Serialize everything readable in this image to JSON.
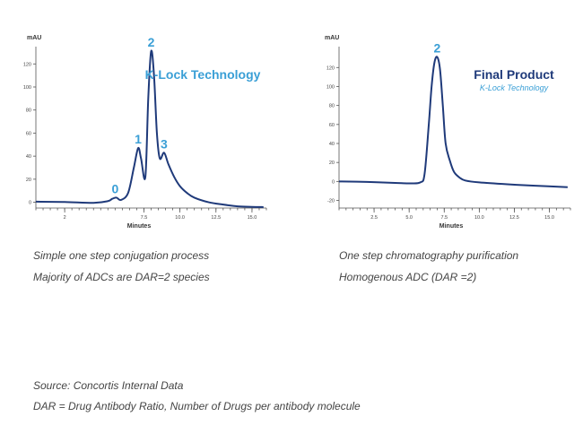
{
  "chart_data": [
    {
      "type": "line",
      "ylabel": "mAU",
      "xlabel": "Minutes",
      "xlim": [
        0,
        16
      ],
      "ylim": [
        -5,
        135
      ],
      "x_ticks": [
        2,
        7.5,
        10.0,
        12.5,
        15.0
      ],
      "x_tick_labels": [
        "2",
        "7.5",
        "10.0",
        "12.5",
        "15.0"
      ],
      "y_ticks": [
        0,
        20,
        40,
        60,
        80,
        100,
        120
      ],
      "y_tick_labels": [
        "0",
        "20",
        "40",
        "60",
        "80",
        "100",
        "120"
      ],
      "annotation": "K-Lock Technology",
      "annotation_sub": "",
      "peaks": [
        {
          "label": "0",
          "x": 5.5,
          "y": 4
        },
        {
          "label": "1",
          "x": 7.1,
          "y": 47
        },
        {
          "label": "2",
          "x": 8.0,
          "y": 131
        },
        {
          "label": "3",
          "x": 8.9,
          "y": 43
        }
      ],
      "series": [
        {
          "x": [
            0,
            2,
            4,
            5,
            5.3,
            5.6,
            5.9,
            6.4,
            6.8,
            7.1,
            7.3,
            7.6,
            7.8,
            8.0,
            8.2,
            8.4,
            8.6,
            8.9,
            9.2,
            9.6,
            10,
            10.5,
            11,
            12,
            13,
            14,
            15,
            15.8
          ],
          "y": [
            0.5,
            0.3,
            -0.5,
            1,
            3,
            4,
            2,
            8,
            30,
            47,
            38,
            22,
            90,
            131,
            110,
            60,
            38,
            43,
            33,
            22,
            14,
            8,
            4,
            0,
            -2,
            -3.5,
            -4,
            -4.2
          ]
        }
      ]
    },
    {
      "type": "line",
      "ylabel": "mAU",
      "xlabel": "Minutes",
      "xlim": [
        0,
        16.5
      ],
      "ylim": [
        -28,
        142
      ],
      "x_ticks": [
        2.5,
        5.0,
        7.5,
        10.0,
        12.5,
        15.0
      ],
      "x_tick_labels": [
        "2.5",
        "5.0",
        "7.5",
        "10.0",
        "12.5",
        "15.0"
      ],
      "y_ticks": [
        -20,
        0,
        20,
        40,
        60,
        80,
        100,
        120
      ],
      "y_tick_labels": [
        "-20",
        "0",
        "20",
        "40",
        "60",
        "80",
        "100",
        "120"
      ],
      "annotation": "Final Product",
      "annotation_sub": "K-Lock Technology",
      "peaks": [
        {
          "label": "2",
          "x": 7.0,
          "y": 131
        }
      ],
      "series": [
        {
          "x": [
            0,
            2,
            4,
            5,
            5.8,
            6.1,
            6.4,
            6.6,
            6.8,
            7.0,
            7.2,
            7.4,
            7.6,
            7.9,
            8.2,
            8.6,
            9,
            10,
            12,
            14,
            16.3
          ],
          "y": [
            0,
            -0.5,
            -1.5,
            -2,
            -1,
            8,
            60,
            100,
            125,
            131,
            118,
            80,
            40,
            22,
            10,
            4,
            1,
            -1,
            -3,
            -4.5,
            -6
          ]
        }
      ]
    }
  ],
  "captions": {
    "left_line1": "Simple one step conjugation process",
    "left_line2": "Majority of ADCs are DAR=2 species",
    "right_line1": "One step chromatography purification",
    "right_line2": "Homogenous ADC (DAR =2)"
  },
  "footnote": {
    "source": "Source:  Concortis Internal Data",
    "definition": "DAR = Drug Antibody Ratio, Number of Drugs per antibody molecule"
  },
  "colors": {
    "trace": "#1f3a7a",
    "accent": "#3a9fd6",
    "navy": "#1f3a7a"
  }
}
